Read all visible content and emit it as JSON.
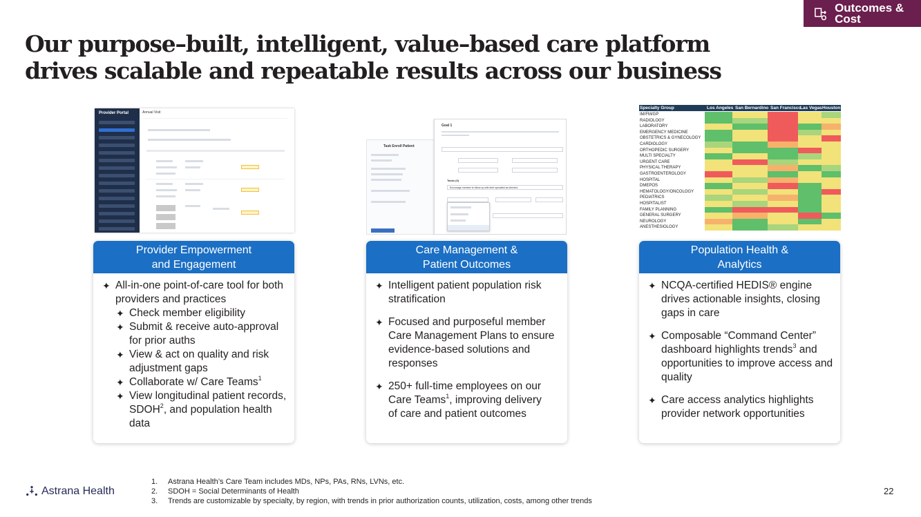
{
  "badge": {
    "text": "Outcomes & Cost",
    "icon": "outcome-icon",
    "color": "#6b1f4e"
  },
  "title": "Our purpose–built, intelligent, value–based care platform drives scalable and repeatable results across our business",
  "screenshots": {
    "provider_portal": {
      "app_title": "Provider Portal",
      "page_title": "Annual Visit"
    },
    "care_management": {
      "goal_title": "Goal 1",
      "tasks_title": "Tasks (0)",
      "task_text": "Encourage member to follow up with their specialist as directed.",
      "left_title": "Task Enroll Patient"
    },
    "heatmap": {
      "header_label": "Specialty Group",
      "columns": [
        "Los Angeles",
        "San Bernardino",
        "San Francisco",
        "Las Vegas",
        "Houston"
      ],
      "rows": [
        "IM/FM/GP",
        "RADIOLOGY",
        "LABORATORY",
        "EMERGENCY MEDICINE",
        "OBSTETRICS & GYNECOLOGY",
        "CARDIOLOGY",
        "ORTHOPEDIC SURGERY",
        "MULTI SPECIALTY",
        "URGENT CARE",
        "PHYSICAL THERAPY",
        "GASTROENTEROLOGY",
        "HOSPITAL",
        "DMEPOS",
        "HEMATOLOGY/ONCOLOGY",
        "PEDIATRICS",
        "HOSPITALIST",
        "FAMILY PLANNING",
        "GENERAL SURGERY",
        "NEUROLOGY",
        "ANESTHESIOLOGY"
      ]
    }
  },
  "cards": [
    {
      "title": "Provider Empowerment and Engagement",
      "lead": "All-in-one point-of-care tool for both providers and practices",
      "sub_bullets": [
        "Check member eligibility",
        "Submit & receive auto-approval for prior auths",
        "View & act on quality and risk adjustment gaps",
        "Collaborate w/ Care Teams",
        "View longitudinal patient records, SDOH",
        ", and population health data"
      ]
    },
    {
      "title": "Care Management & Patient Outcomes",
      "bullets": [
        "Intelligent patient population risk stratification",
        "Focused and purposeful member Care Management Plans to ensure evidence-based solutions and responses",
        "250+ full-time employees on our Care Teams",
        ", improving delivery of care and patient outcomes"
      ]
    },
    {
      "title": "Population Health & Analytics",
      "bullets": [
        "NCQA-certified HEDIS® engine drives actionable insights, closing gaps in care",
        "Composable “Command Center” dashboard highlights trends",
        " and opportunities to improve access and quality",
        "Care access analytics highlights provider network opportunities"
      ]
    }
  ],
  "footer": {
    "logo_text": "Astrana Health",
    "page_number": "22",
    "footnotes": [
      {
        "n": "1.",
        "text": "Astrana Health’s Care Team includes MDs, NPs, PAs, RNs, LVNs, etc."
      },
      {
        "n": "2.",
        "text": "SDOH = Social Determinants of Health"
      },
      {
        "n": "3.",
        "text": "Trends are customizable by specialty, by region, with trends in prior authorization counts, utilization, costs, among other trends"
      }
    ]
  },
  "colors": {
    "card_header": "#1b6fc4",
    "heat_green": "#5fbf6a",
    "heat_yellow": "#f2e27a",
    "heat_red": "#ef5b5b"
  }
}
